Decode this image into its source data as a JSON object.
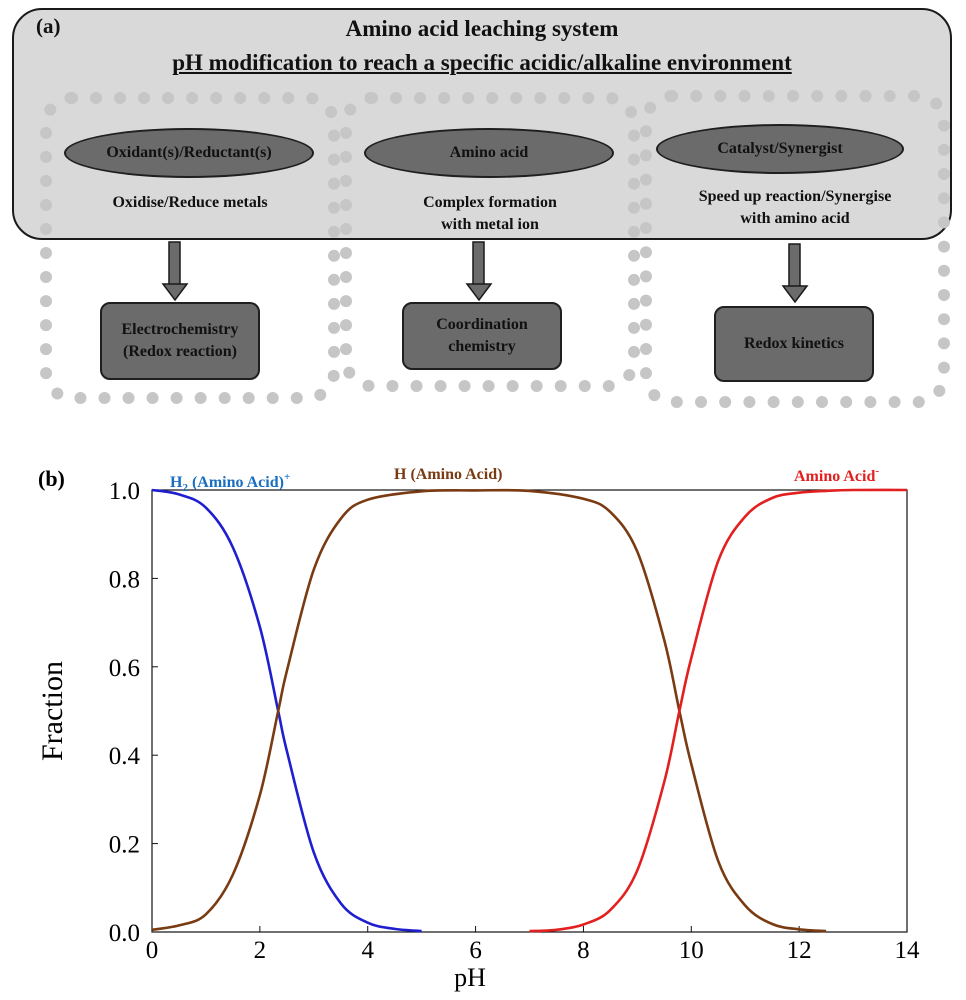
{
  "panel_a": {
    "label": "(a)",
    "title": "Amino acid leaching system",
    "subtitle": "pH modification to reach a specific acidic/alkaline environment",
    "components": [
      {
        "name": "Oxidant(s)/Reductant(s)",
        "role": [
          "Oxidise/Reduce metals"
        ],
        "outcome": [
          "Electrochemistry",
          "(Redox reaction)"
        ]
      },
      {
        "name": "Amino acid",
        "role": [
          "Complex formation",
          "with metal ion"
        ],
        "outcome": [
          "Coordination",
          "chemistry"
        ]
      },
      {
        "name": "Catalyst/Synergist",
        "role": [
          "Speed up reaction/Synergise",
          "with amino acid"
        ],
        "outcome": [
          "Redox kinetics"
        ]
      }
    ]
  },
  "panel_b": {
    "label": "(b)",
    "chart_data": {
      "type": "line",
      "title": "",
      "xlabel": "pH",
      "ylabel": "Fraction",
      "xlim": [
        0,
        14
      ],
      "ylim": [
        0,
        1
      ],
      "xticks": [
        "0",
        "2",
        "4",
        "6",
        "8",
        "10",
        "12",
        "14"
      ],
      "yticks": [
        "0.0",
        "0.2",
        "0.4",
        "0.6",
        "0.8",
        "1.0"
      ],
      "grid": false,
      "series": [
        {
          "name": "H₂ (Amino Acid)⁺",
          "color": "#1f1fcf",
          "label_color": "#1a6ec0",
          "x": [
            0,
            0.5,
            1,
            1.5,
            2,
            2.34,
            2.5,
            3,
            3.5,
            4,
            4.5,
            5
          ],
          "y": [
            1.0,
            0.99,
            0.96,
            0.87,
            0.69,
            0.5,
            0.41,
            0.18,
            0.065,
            0.021,
            0.007,
            0.002
          ]
        },
        {
          "name": "H (Amino Acid)",
          "color": "#7a3a12",
          "label_color": "#7a3a12",
          "x": [
            0,
            0.5,
            1,
            1.5,
            2,
            2.34,
            2.5,
            3,
            3.5,
            4,
            5,
            6,
            7,
            8,
            8.5,
            9,
            9.5,
            9.78,
            10,
            10.5,
            11,
            11.5,
            12,
            12.5
          ],
          "y": [
            0.005,
            0.015,
            0.04,
            0.13,
            0.31,
            0.5,
            0.59,
            0.82,
            0.935,
            0.978,
            0.997,
            0.999,
            0.998,
            0.98,
            0.95,
            0.86,
            0.66,
            0.5,
            0.38,
            0.16,
            0.06,
            0.018,
            0.006,
            0.002
          ]
        },
        {
          "name": "Amino Acid⁻",
          "color": "#e32020",
          "label_color": "#e32020",
          "x": [
            7,
            7.5,
            8,
            8.5,
            9,
            9.5,
            9.78,
            10,
            10.5,
            11,
            11.5,
            12,
            12.5,
            13,
            14
          ],
          "y": [
            0.002,
            0.005,
            0.017,
            0.05,
            0.14,
            0.34,
            0.5,
            0.62,
            0.84,
            0.94,
            0.982,
            0.994,
            0.998,
            1.0,
            1.0
          ]
        }
      ]
    }
  }
}
